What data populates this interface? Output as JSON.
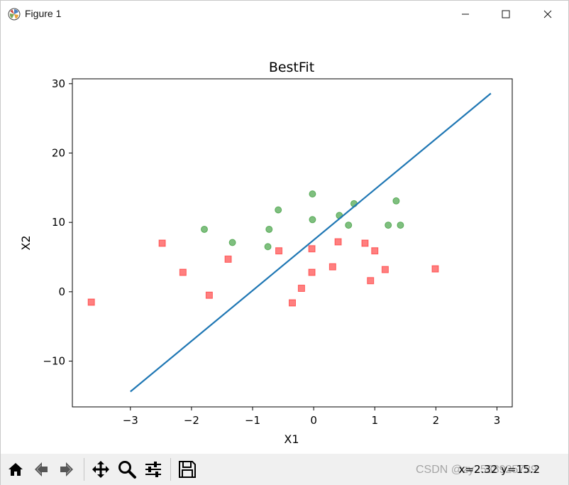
{
  "window": {
    "title": "Figure 1",
    "colors": {
      "accent_line": "#1f77b4",
      "class_0": "#ff0000",
      "class_1": "#008000"
    }
  },
  "toolbar": {
    "coords_text": "x=2.32 y=15.2",
    "watermark": "CSDN @zy2538925739",
    "buttons": [
      "home-icon",
      "back-icon",
      "forward-icon",
      "pan-icon",
      "zoom-icon",
      "configure-subplots-icon",
      "save-icon"
    ]
  },
  "chart_data": {
    "type": "scatter",
    "title": "BestFit",
    "xlabel": "X1",
    "ylabel": "X2",
    "xlim": [
      -3.95,
      3.25
    ],
    "ylim": [
      -16.6,
      30.7
    ],
    "xticks": [
      -3,
      -2,
      -1,
      0,
      1,
      2,
      3
    ],
    "yticks": [
      -10,
      0,
      10,
      20,
      30
    ],
    "grid": false,
    "legend": "none",
    "series": [
      {
        "marker": "square",
        "color": "#ff0000",
        "points": [
          [
            -3.64,
            -1.5
          ],
          [
            -2.48,
            7.0
          ],
          [
            -2.14,
            2.8
          ],
          [
            -1.71,
            -0.5
          ],
          [
            -1.4,
            4.7
          ],
          [
            -0.57,
            5.9
          ],
          [
            -0.35,
            -1.6
          ],
          [
            -0.2,
            0.5
          ],
          [
            -0.03,
            6.2
          ],
          [
            -0.03,
            2.8
          ],
          [
            0.31,
            3.6
          ],
          [
            0.4,
            7.2
          ],
          [
            0.84,
            7.0
          ],
          [
            0.93,
            1.6
          ],
          [
            1.0,
            5.9
          ],
          [
            1.17,
            3.2
          ],
          [
            1.99,
            3.3
          ]
        ]
      },
      {
        "marker": "circle",
        "color": "#008000",
        "points": [
          [
            -1.79,
            9.0
          ],
          [
            -1.33,
            7.1
          ],
          [
            -0.75,
            6.5
          ],
          [
            -0.73,
            9.0
          ],
          [
            -0.58,
            11.8
          ],
          [
            -0.02,
            14.1
          ],
          [
            -0.02,
            10.4
          ],
          [
            0.42,
            11.0
          ],
          [
            0.57,
            9.6
          ],
          [
            0.66,
            12.7
          ],
          [
            1.22,
            9.6
          ],
          [
            1.35,
            13.1
          ],
          [
            1.42,
            9.6
          ]
        ]
      }
    ],
    "fit_line": {
      "color": "#1f77b4",
      "points": [
        [
          -3.0,
          -14.4
        ],
        [
          2.9,
          28.6
        ]
      ]
    }
  }
}
